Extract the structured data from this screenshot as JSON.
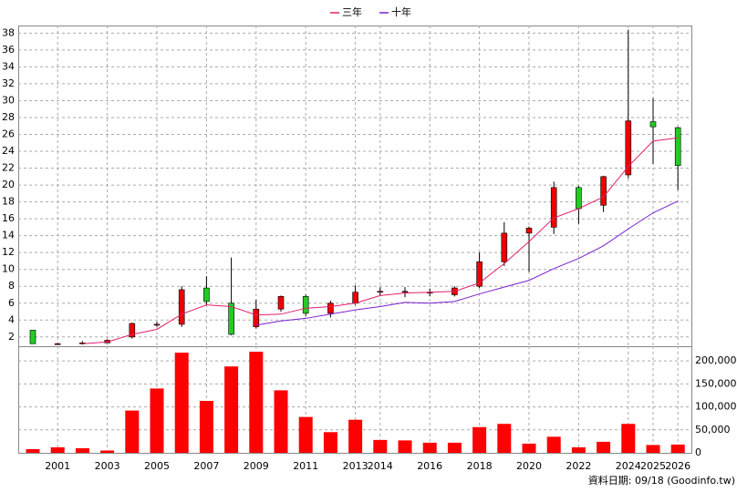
{
  "chart_data": {
    "type": "candlestick",
    "categories": [
      null,
      "2001",
      null,
      "2003",
      null,
      "2005",
      null,
      "2007",
      null,
      "2009",
      null,
      "2011",
      null,
      "2013",
      "2014",
      null,
      "2016",
      null,
      "2018",
      null,
      "2020",
      null,
      "2022",
      null,
      "2024",
      "2025",
      "2026"
    ],
    "open": [
      2.8,
      1.2,
      1.2,
      1.3,
      2.0,
      3.4,
      3.5,
      7.8,
      6.0,
      3.2,
      5.3,
      6.8,
      4.8,
      6.0,
      7.3,
      7.3,
      7.2,
      7.0,
      8.0,
      10.9,
      14.3,
      15.0,
      19.7,
      17.6,
      21.2,
      27.5,
      26.8
    ],
    "high": [
      2.8,
      1.3,
      1.5,
      1.7,
      3.7,
      3.8,
      8.0,
      9.2,
      11.4,
      6.4,
      6.9,
      7.0,
      6.3,
      8.1,
      7.9,
      7.9,
      7.7,
      8.0,
      12.0,
      15.6,
      15.1,
      20.4,
      19.9,
      21.1,
      38.4,
      30.3,
      26.9
    ],
    "low": [
      1.2,
      1.1,
      1.1,
      1.3,
      1.8,
      3.2,
      3.2,
      5.8,
      2.2,
      3.0,
      5.0,
      4.5,
      4.3,
      5.8,
      6.9,
      6.7,
      6.8,
      6.8,
      7.8,
      10.4,
      9.7,
      14.2,
      15.4,
      16.8,
      20.8,
      22.5,
      19.4
    ],
    "close": [
      1.2,
      1.2,
      1.3,
      1.6,
      3.6,
      3.5,
      7.6,
      6.2,
      2.3,
      5.3,
      6.8,
      4.8,
      6.0,
      7.3,
      7.4,
      7.4,
      7.3,
      7.8,
      10.9,
      14.3,
      14.9,
      19.7,
      17.2,
      21.0,
      27.6,
      26.9,
      22.3
    ],
    "up_color": "#ee0000",
    "down_color": "#22cc22",
    "ylim": [
      0.9,
      38.9
    ],
    "yticks": [
      2,
      4,
      6,
      8,
      10,
      12,
      14,
      16,
      18,
      20,
      22,
      24,
      26,
      28,
      30,
      32,
      34,
      36,
      38
    ],
    "series": [
      {
        "name": "三年",
        "color": "#e0206a",
        "values": [
          null,
          null,
          1.2,
          1.4,
          2.3,
          2.9,
          4.7,
          5.8,
          5.6,
          4.6,
          4.7,
          5.4,
          5.6,
          6.0,
          6.9,
          7.2,
          7.3,
          7.4,
          8.4,
          10.7,
          13.3,
          16.1,
          17.2,
          18.6,
          22.2,
          25.2,
          25.6
        ]
      },
      {
        "name": "十年",
        "color": "#7a1fd0",
        "values": [
          null,
          null,
          null,
          null,
          null,
          null,
          null,
          null,
          null,
          3.4,
          3.9,
          4.2,
          4.7,
          5.2,
          5.6,
          6.1,
          6.0,
          6.2,
          7.1,
          7.9,
          8.7,
          10.1,
          11.3,
          12.8,
          14.8,
          16.7,
          18.1
        ]
      }
    ],
    "volume": {
      "color": "#ff0000",
      "values": [
        8000,
        12000,
        10000,
        5000,
        92000,
        140000,
        218000,
        113000,
        188000,
        220000,
        136000,
        78000,
        45000,
        72000,
        28000,
        27000,
        22000,
        22000,
        56000,
        63000,
        20000,
        35000,
        12000,
        24000,
        63000,
        17000,
        18000
      ],
      "ylim": [
        0,
        232000
      ],
      "yticks": [
        0,
        {
          "value": 50000,
          "label": "50,000"
        },
        {
          "value": 100000,
          "label": "100,000"
        },
        {
          "value": 150000,
          "label": "150,000"
        },
        {
          "value": 200000,
          "label": "200,000"
        }
      ]
    },
    "grid": true,
    "footnote": "資料日期: 09/18  (Goodinfo.tw)"
  }
}
